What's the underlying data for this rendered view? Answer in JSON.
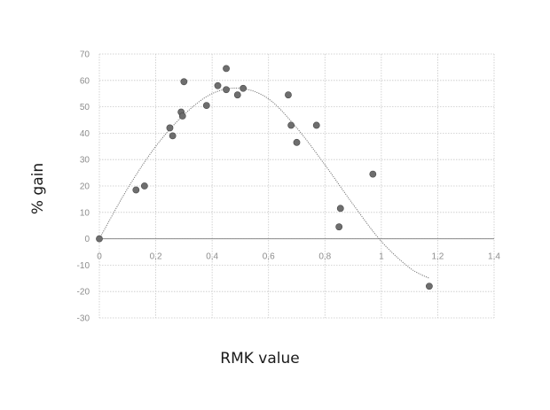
{
  "chart_data": {
    "type": "scatter",
    "title": "",
    "xlabel": "RMK value",
    "ylabel": "% gain",
    "xlim": [
      0,
      1.4
    ],
    "ylim": [
      -30,
      70
    ],
    "x_ticks": [
      0,
      0.2,
      0.4,
      0.6,
      0.8,
      1,
      1.2,
      1.4
    ],
    "x_tick_labels": [
      "0",
      "0,2",
      "0,4",
      "0,6",
      "0,8",
      "1",
      "1,2",
      "1,4"
    ],
    "y_ticks": [
      -30,
      -20,
      -10,
      0,
      10,
      20,
      30,
      40,
      50,
      60,
      70
    ],
    "y_tick_labels": [
      "-30",
      "-20",
      "-10",
      "0",
      "10",
      "20",
      "30",
      "40",
      "50",
      "60",
      "70"
    ],
    "grid": true,
    "legend": "none",
    "series": [
      {
        "type": "scatter",
        "x": [
          0.0,
          0.13,
          0.16,
          0.25,
          0.26,
          0.29,
          0.295,
          0.3,
          0.38,
          0.42,
          0.45,
          0.45,
          0.49,
          0.51,
          0.67,
          0.68,
          0.7,
          0.77,
          0.85,
          0.855,
          0.97,
          1.17
        ],
        "y": [
          0,
          18.5,
          20,
          42,
          39,
          48,
          46.5,
          59.5,
          50.5,
          58,
          56.5,
          64.5,
          54.5,
          57,
          54.5,
          43,
          36.5,
          43,
          4.5,
          11.5,
          24.5,
          -18
        ]
      },
      {
        "type": "line",
        "style": "dotted",
        "x": [
          0,
          0.1,
          0.2,
          0.3,
          0.4,
          0.5,
          0.6,
          0.7,
          0.8,
          0.9,
          1.0,
          1.1,
          1.17
        ],
        "y": [
          0,
          19,
          35,
          47,
          55,
          57,
          53,
          42,
          28,
          13,
          -1,
          -11,
          -15
        ]
      }
    ]
  }
}
